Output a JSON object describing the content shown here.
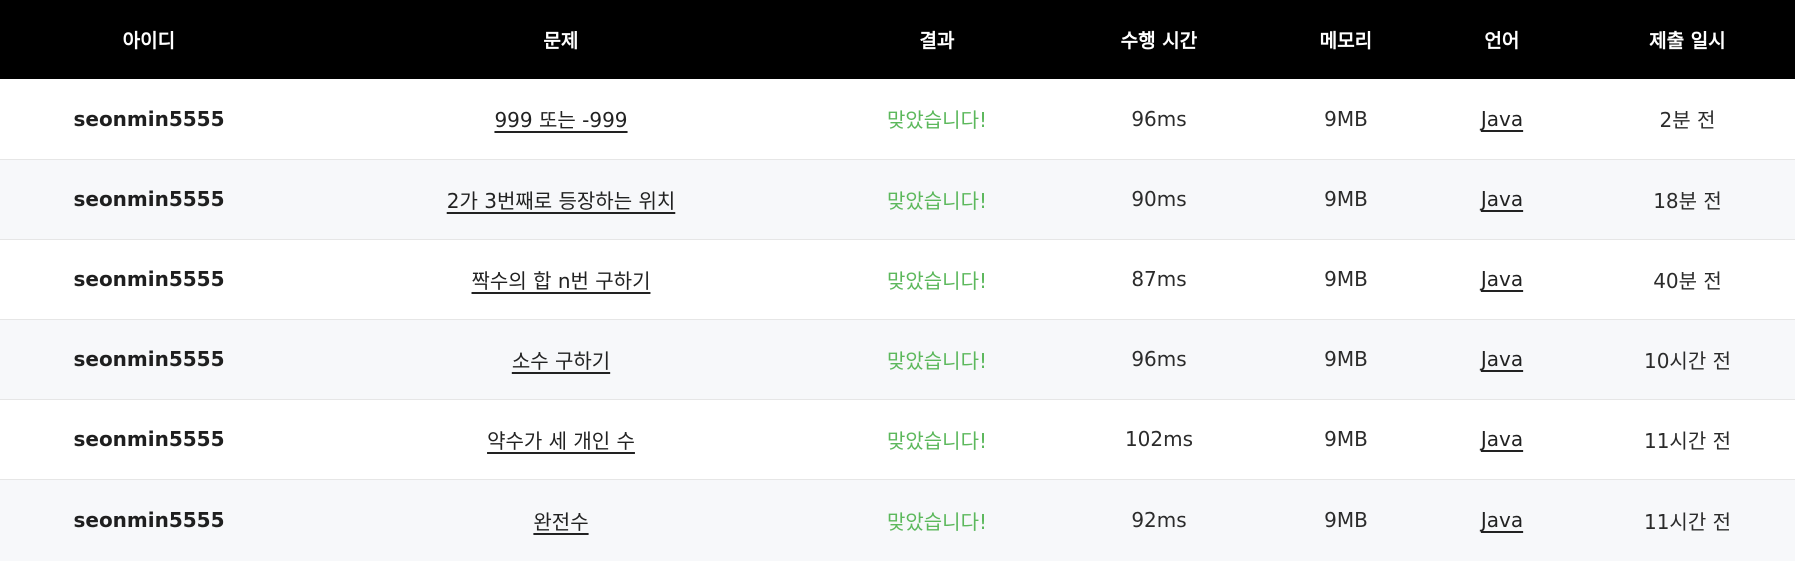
{
  "headers": [
    "아이디",
    "문제",
    "결과",
    "수행 시간",
    "메모리",
    "언어",
    "제출 일시"
  ],
  "rows": [
    {
      "user": "seonmin5555",
      "problem": "999 또는 -999",
      "result": "맞았습니다!",
      "time": "96ms",
      "memory": "9MB",
      "language": "Java",
      "submitted": "2분 전"
    },
    {
      "user": "seonmin5555",
      "problem": "2가 3번째로 등장하는 위치",
      "result": "맞았습니다!",
      "time": "90ms",
      "memory": "9MB",
      "language": "Java",
      "submitted": "18분 전"
    },
    {
      "user": "seonmin5555",
      "problem": "짝수의 합 n번 구하기",
      "result": "맞았습니다!",
      "time": "87ms",
      "memory": "9MB",
      "language": "Java",
      "submitted": "40분 전"
    },
    {
      "user": "seonmin5555",
      "problem": "소수 구하기",
      "result": "맞았습니다!",
      "time": "96ms",
      "memory": "9MB",
      "language": "Java",
      "submitted": "10시간 전"
    },
    {
      "user": "seonmin5555",
      "problem": "약수가 세 개인 수",
      "result": "맞았습니다!",
      "time": "102ms",
      "memory": "9MB",
      "language": "Java",
      "submitted": "11시간 전"
    },
    {
      "user": "seonmin5555",
      "problem": "완전수",
      "result": "맞았습니다!",
      "time": "92ms",
      "memory": "9MB",
      "language": "Java",
      "submitted": "11시간 전"
    }
  ],
  "colors": {
    "header_bg": "#000000",
    "header_text": "#ffffff",
    "success": "#5cb85c",
    "row_alt": "#f7f8fa"
  }
}
